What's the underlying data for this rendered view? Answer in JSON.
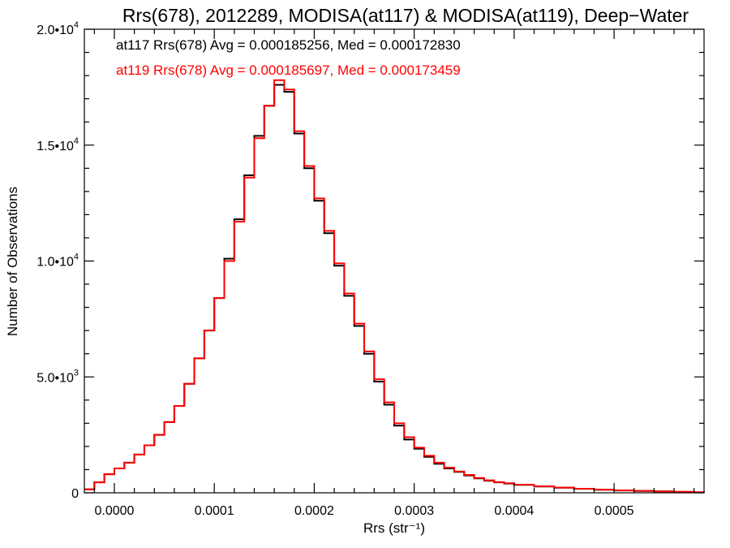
{
  "chart_data": {
    "type": "histogram-step",
    "title": "Rrs(678), 2012289, MODISA(at117) & MODISA(at119), Deep−Water",
    "xlabel": "Rrs (str⁻¹)",
    "ylabel": "Number of Observations",
    "xlim": [
      -3e-05,
      0.00059
    ],
    "ylim": [
      0,
      20000
    ],
    "x_ticks": [
      0,
      0.0001,
      0.0002,
      0.0003,
      0.0004,
      0.0005
    ],
    "x_tick_labels": [
      "0.0000",
      "0.0001",
      "0.0002",
      "0.0003",
      "0.0004",
      "0.0005"
    ],
    "y_ticks": [
      0,
      5000,
      10000,
      15000,
      20000
    ],
    "y_tick_labels": [
      {
        "mantissa": "0",
        "exp": ""
      },
      {
        "mantissa": "5.0•10",
        "exp": "3"
      },
      {
        "mantissa": "1.0•10",
        "exp": "4"
      },
      {
        "mantissa": "1.5•10",
        "exp": "4"
      },
      {
        "mantissa": "2.0•10",
        "exp": "4"
      }
    ],
    "grid": false,
    "annotations": [
      {
        "text": "at117 Rrs(678) Avg = 0.000185256, Med = 0.000172830",
        "color": "#000000"
      },
      {
        "text": "at119 Rrs(678) Avg = 0.000185697, Med = 0.000173459",
        "color": "#ff0000"
      }
    ],
    "series": [
      {
        "name": "at117",
        "color": "#000000",
        "x": [
          -3e-05,
          -2e-05,
          -1e-05,
          0,
          1e-05,
          2e-05,
          3e-05,
          4e-05,
          5e-05,
          6e-05,
          7e-05,
          8e-05,
          9e-05,
          0.0001,
          0.00011,
          0.00012,
          0.00013,
          0.00014,
          0.00015,
          0.00016,
          0.00017,
          0.00018,
          0.00019,
          0.0002,
          0.00021,
          0.00022,
          0.00023,
          0.00024,
          0.00025,
          0.00026,
          0.00027,
          0.00028,
          0.00029,
          0.0003,
          0.00031,
          0.00032,
          0.00033,
          0.00034,
          0.00035,
          0.00036,
          0.00037,
          0.00038,
          0.00039,
          0.0004,
          0.00042,
          0.00044,
          0.00046,
          0.00048,
          0.0005,
          0.00052,
          0.00054,
          0.00056,
          0.00058,
          0.00059
        ],
        "y": [
          150,
          450,
          800,
          1050,
          1300,
          1650,
          2050,
          2500,
          3050,
          3750,
          4700,
          5800,
          7000,
          8400,
          10100,
          11800,
          13700,
          15400,
          16700,
          17600,
          17300,
          15500,
          14000,
          12600,
          11200,
          9800,
          8500,
          7200,
          6000,
          4800,
          3800,
          2900,
          2300,
          1900,
          1550,
          1250,
          1050,
          900,
          750,
          620,
          520,
          450,
          400,
          340,
          270,
          220,
          170,
          130,
          100,
          80,
          60,
          40,
          20,
          10
        ]
      },
      {
        "name": "at119",
        "color": "#ff0000",
        "x": [
          -3e-05,
          -2e-05,
          -1e-05,
          0,
          1e-05,
          2e-05,
          3e-05,
          4e-05,
          5e-05,
          6e-05,
          7e-05,
          8e-05,
          9e-05,
          0.0001,
          0.00011,
          0.00012,
          0.00013,
          0.00014,
          0.00015,
          0.00016,
          0.00017,
          0.00018,
          0.00019,
          0.0002,
          0.00021,
          0.00022,
          0.00023,
          0.00024,
          0.00025,
          0.00026,
          0.00027,
          0.00028,
          0.00029,
          0.0003,
          0.00031,
          0.00032,
          0.00033,
          0.00034,
          0.00035,
          0.00036,
          0.00037,
          0.00038,
          0.00039,
          0.0004,
          0.00042,
          0.00044,
          0.00046,
          0.00048,
          0.0005,
          0.00052,
          0.00054,
          0.00056,
          0.00058,
          0.00059
        ],
        "y": [
          150,
          450,
          800,
          1050,
          1300,
          1650,
          2050,
          2500,
          3050,
          3750,
          4700,
          5800,
          7000,
          8400,
          10000,
          11700,
          13600,
          15300,
          16700,
          17800,
          17400,
          15600,
          14100,
          12700,
          11300,
          9900,
          8600,
          7300,
          6100,
          4900,
          3900,
          3000,
          2400,
          1950,
          1600,
          1300,
          1080,
          920,
          770,
          640,
          540,
          460,
          410,
          350,
          280,
          225,
          175,
          135,
          105,
          85,
          62,
          42,
          22,
          12
        ]
      }
    ]
  }
}
